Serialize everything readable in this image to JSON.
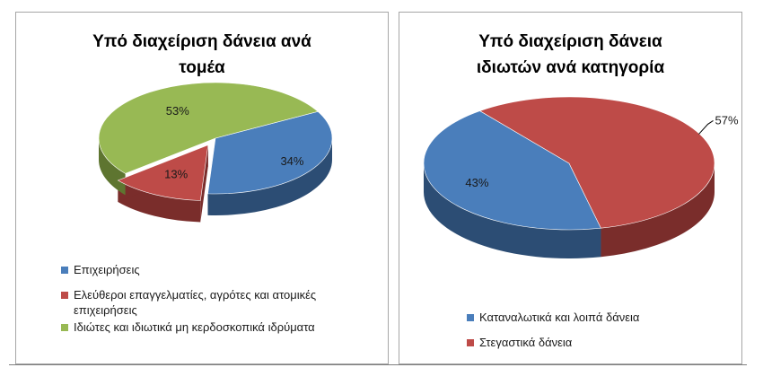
{
  "chart_data": [
    {
      "type": "pie",
      "title": "Υπό διαχείριση δάνεια ανά τομέα",
      "title_lines": [
        "Υπό διαχείριση δάνεια ανά",
        "τομέα"
      ],
      "slices": [
        {
          "label": "Επιχειρήσεις",
          "value": 34,
          "display": "34%",
          "color": "#4a7ebb",
          "side_color": "#2c4d74"
        },
        {
          "label": "Ελεύθεροι επαγγελματίες, αγρότες και ατομικές επιχειρήσεις",
          "label_lines": [
            "Ελεύθεροι επαγγελματίες, αγρότες και ατομικές",
            "επιχειρήσεις"
          ],
          "value": 13,
          "display": "13%",
          "color": "#be4b48",
          "side_color": "#7a2d2b",
          "exploded": true
        },
        {
          "label": "Ιδιώτες και ιδιωτικά μη κερδοσκοπικά ιδρύματα",
          "value": 53,
          "display": "53%",
          "color": "#98b954",
          "side_color": "#5e7530"
        }
      ],
      "legend_position": "bottom"
    },
    {
      "type": "pie",
      "title": "Υπό διαχείριση δάνεια ιδιωτών ανά κατηγορία",
      "title_lines": [
        "Υπό διαχείριση δάνεια",
        "ιδιωτών ανά κατηγορία"
      ],
      "slices": [
        {
          "label": "Καταναλωτικά και λοιπά δάνεια",
          "value": 43,
          "display": "43%",
          "color": "#4a7ebb",
          "side_color": "#2c4d74"
        },
        {
          "label": "Στεγαστικά δάνεια",
          "value": 57,
          "display": "57%",
          "color": "#be4b48",
          "side_color": "#7a2d2b"
        }
      ],
      "legend_position": "bottom"
    }
  ]
}
